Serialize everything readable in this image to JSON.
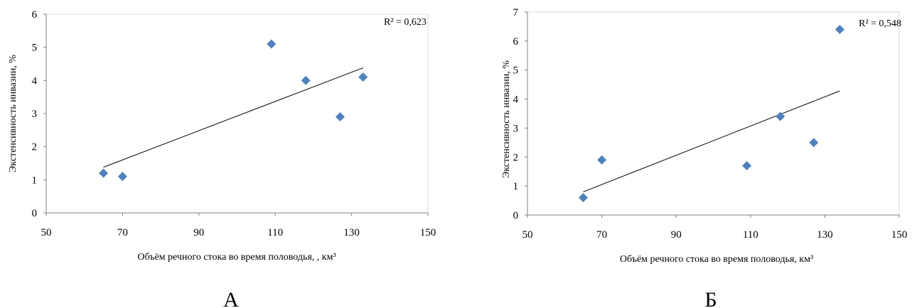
{
  "chart_data": [
    {
      "type": "scatter",
      "panel_label": "А",
      "xlabel": "Объём речного стока во время половодья, , км³",
      "ylabel": "Экстенсивность инвазии, %",
      "xlim": [
        50,
        150
      ],
      "ylim": [
        0,
        6
      ],
      "xticks": [
        50,
        70,
        90,
        110,
        130,
        150
      ],
      "yticks": [
        0,
        1,
        2,
        3,
        4,
        5,
        6
      ],
      "marker_color": "#4f81bd",
      "trendline": {
        "type": "linear",
        "x": [
          65,
          133
        ],
        "y": [
          1.38,
          4.38
        ]
      },
      "r2_label": "R² = 0,623",
      "legend": "none",
      "grid": false,
      "x": [
        65,
        70,
        109,
        118,
        127,
        133
      ],
      "y": [
        1.2,
        1.1,
        5.1,
        4.0,
        2.9,
        4.1
      ]
    },
    {
      "type": "scatter",
      "panel_label": "Б",
      "xlabel": "Объём речного стока во время половодья, км³",
      "ylabel": "Экстенсивность инвазии, %",
      "xlim": [
        50,
        150
      ],
      "ylim": [
        0,
        7
      ],
      "xticks": [
        50,
        70,
        90,
        110,
        130,
        150
      ],
      "yticks": [
        0,
        1,
        2,
        3,
        4,
        5,
        6,
        7
      ],
      "marker_color": "#4f81bd",
      "trendline": {
        "type": "linear",
        "x": [
          65,
          134
        ],
        "y": [
          0.8,
          4.28
        ]
      },
      "r2_label": "R² = 0,548",
      "legend": "none",
      "grid": false,
      "x": [
        65,
        70,
        109,
        118,
        127,
        134
      ],
      "y": [
        0.6,
        1.9,
        1.7,
        3.4,
        2.5,
        6.4
      ]
    }
  ]
}
